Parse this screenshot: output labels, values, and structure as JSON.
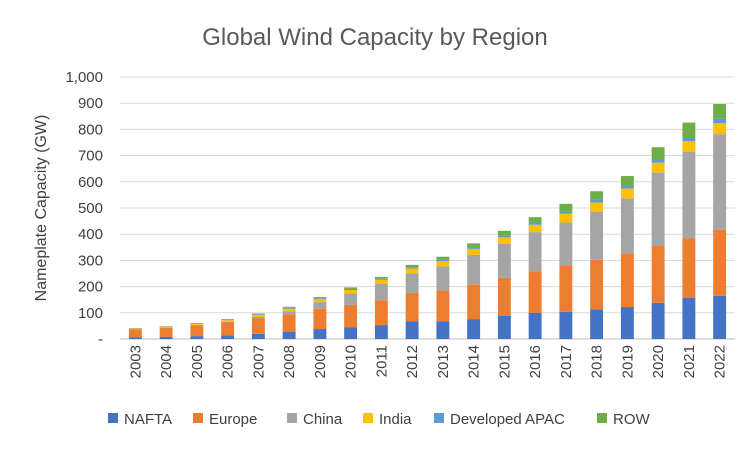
{
  "chart_data": {
    "type": "bar",
    "stacked": true,
    "title": "Global Wind Capacity by Region",
    "xlabel": "",
    "ylabel": "Nameplate Capacity (GW)",
    "ylim": [
      0,
      1000
    ],
    "yticks": [
      0,
      100,
      200,
      300,
      400,
      500,
      600,
      700,
      800,
      900,
      1000
    ],
    "ytick_labels": [
      "-",
      "100",
      "200",
      "300",
      "400",
      "500",
      "600",
      "700",
      "800",
      "900",
      "1,000"
    ],
    "grid": true,
    "legend_position": "bottom",
    "categories": [
      "2003",
      "2004",
      "2005",
      "2006",
      "2007",
      "2008",
      "2009",
      "2010",
      "2011",
      "2012",
      "2013",
      "2014",
      "2015",
      "2016",
      "2017",
      "2018",
      "2019",
      "2020",
      "2021",
      "2022"
    ],
    "series": [
      {
        "name": "NAFTA",
        "color": "#4472C4",
        "values": [
          7,
          8,
          11,
          14,
          20,
          28,
          38,
          44,
          53,
          68,
          68,
          76,
          88,
          100,
          104,
          113,
          122,
          138,
          158,
          165
        ]
      },
      {
        "name": "Europe",
        "color": "#ED7D31",
        "values": [
          30,
          35,
          41,
          49,
          58,
          66,
          77,
          86,
          95,
          108,
          118,
          131,
          146,
          159,
          177,
          189,
          205,
          217,
          227,
          252
        ]
      },
      {
        "name": "China",
        "color": "#A5A5A5",
        "values": [
          1,
          1,
          2,
          3,
          6,
          12,
          26,
          44,
          62,
          75,
          91,
          115,
          129,
          149,
          164,
          184,
          210,
          280,
          330,
          365
        ]
      },
      {
        "name": "India",
        "color": "#FFC000",
        "values": [
          2,
          3,
          4,
          6,
          8,
          10,
          11,
          13,
          16,
          18,
          20,
          22,
          25,
          28,
          33,
          35,
          37,
          38,
          40,
          42
        ]
      },
      {
        "name": "Developed APAC",
        "color": "#5B9BD5",
        "values": [
          1,
          1,
          1,
          2,
          2,
          3,
          3,
          4,
          4,
          5,
          6,
          7,
          8,
          9,
          10,
          11,
          12,
          14,
          16,
          18
        ]
      },
      {
        "name": "ROW",
        "color": "#70AD47",
        "values": [
          1,
          1,
          2,
          2,
          3,
          4,
          5,
          6,
          7,
          9,
          11,
          14,
          17,
          20,
          28,
          32,
          36,
          45,
          55,
          55
        ]
      }
    ]
  }
}
